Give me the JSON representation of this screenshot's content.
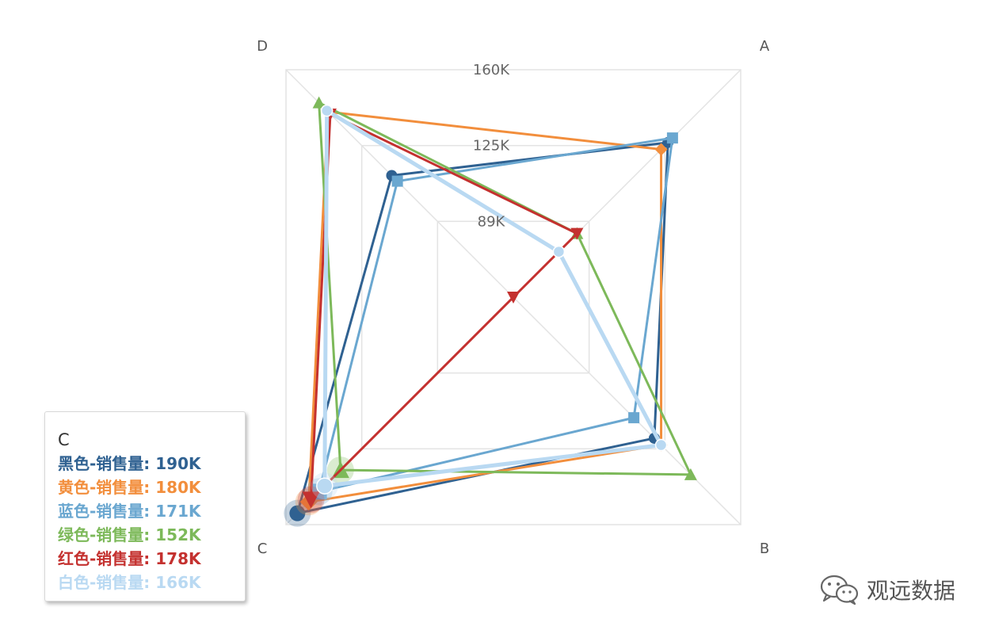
{
  "chart_data": {
    "type": "radar",
    "axes": [
      "A",
      "B",
      "C",
      "D"
    ],
    "tick_labels": [
      "89K",
      "125K",
      "160K"
    ],
    "series": [
      {
        "name": "黑色-销售量",
        "color": "#2f6191",
        "marker": "circle",
        "values": [
          136,
          124,
          190,
          107
        ]
      },
      {
        "name": "黄色-销售量",
        "color": "#f28e3c",
        "marker": "diamond",
        "values": [
          130,
          130,
          180,
          163
        ]
      },
      {
        "name": "蓝色-销售量",
        "color": "#6aa7d0",
        "marker": "square",
        "values": [
          140,
          106,
          171,
          102
        ]
      },
      {
        "name": "绿色-销售量",
        "color": "#7db95a",
        "marker": "triangle",
        "values": [
          56,
          156,
          152,
          171
        ]
      },
      {
        "name": "红色-销售量",
        "color": "#c4312f",
        "marker": "triangle-down",
        "values": [
          56,
          0,
          178,
          161
        ]
      },
      {
        "name": "白色-销售量",
        "color": "#b9d9f2",
        "marker": "circle",
        "values": [
          40,
          130,
          166,
          164
        ]
      }
    ]
  },
  "tooltip": {
    "title": "C",
    "rows": [
      {
        "label": "黑色-销售量: 190K",
        "color": "#2f6191"
      },
      {
        "label": "黄色-销售量: 180K",
        "color": "#f28e3c"
      },
      {
        "label": "蓝色-销售量: 171K",
        "color": "#6aa7d0"
      },
      {
        "label": "绿色-销售量: 152K",
        "color": "#7db95a"
      },
      {
        "label": "红色-销售量: 178K",
        "color": "#c4312f"
      },
      {
        "label": "白色-销售量: 166K",
        "color": "#b9d9f2"
      }
    ]
  },
  "watermark": {
    "text": "观远数据",
    "icon": "wechat-icon"
  }
}
